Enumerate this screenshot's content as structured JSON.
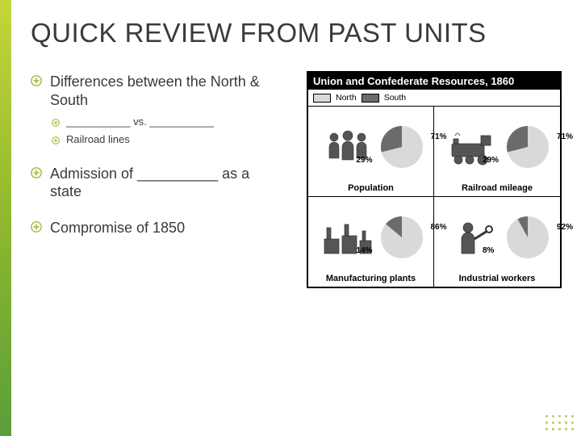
{
  "title": "QUICK REVIEW FROM PAST UNITS",
  "accent_gradient": [
    "#c5d63a",
    "#8fb82e",
    "#5a9e3a"
  ],
  "text_color": "#3a3a3a",
  "bullets": [
    {
      "text": "Differences between the North & South",
      "sub": [
        {
          "text": "___________ vs. ___________"
        },
        {
          "text": "Railroad lines"
        }
      ]
    },
    {
      "text": "Admission of __________ as a state"
    },
    {
      "text": "Compromise of 1850"
    }
  ],
  "figure": {
    "title": "Union and Confederate Resources, 1860",
    "legend": {
      "north_label": "North",
      "south_label": "South"
    },
    "north_color": "#d9d9d9",
    "south_color": "#6b6b6b",
    "border_color": "#000000",
    "cells": [
      {
        "label": "Population",
        "north_pct": 71,
        "south_pct": 29,
        "icon": "people"
      },
      {
        "label": "Railroad mileage",
        "north_pct": 71,
        "south_pct": 29,
        "icon": "train"
      },
      {
        "label": "Manufacturing plants",
        "north_pct": 86,
        "south_pct": 14,
        "icon": "factories"
      },
      {
        "label": "Industrial workers",
        "north_pct": 92,
        "south_pct": 8,
        "icon": "worker"
      }
    ]
  }
}
